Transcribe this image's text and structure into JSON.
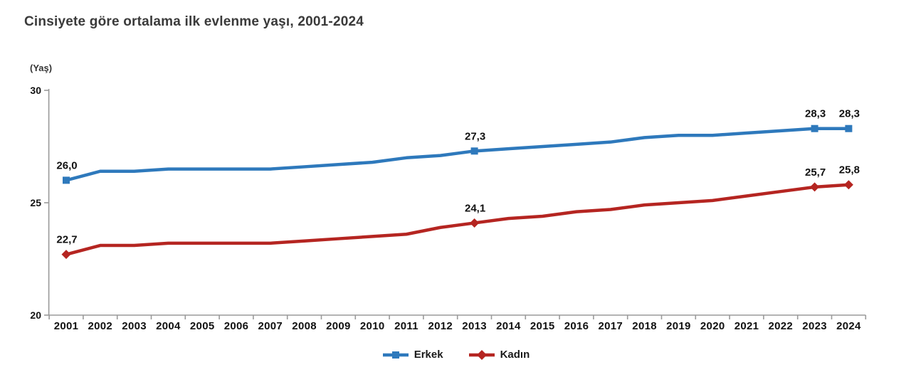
{
  "chart_data": {
    "type": "line",
    "title": "Cinsiyete göre ortalama ilk evlenme yaşı, 2001-2024",
    "unit_label": "(Yaş)",
    "xlabel": "",
    "ylabel": "(Yaş)",
    "x": [
      2001,
      2002,
      2003,
      2004,
      2005,
      2006,
      2007,
      2008,
      2009,
      2010,
      2011,
      2012,
      2013,
      2014,
      2015,
      2016,
      2017,
      2018,
      2019,
      2020,
      2021,
      2022,
      2023,
      2024
    ],
    "ylim": [
      20,
      30
    ],
    "yticks": [
      20,
      25,
      30
    ],
    "grid": false,
    "legend_position": "bottom-center",
    "axis_color": "#9a9a9a",
    "label_color": "#111111",
    "series": [
      {
        "name": "Erkek",
        "color": "#2E79BC",
        "marker": "square",
        "values": [
          26.0,
          26.4,
          26.4,
          26.5,
          26.5,
          26.5,
          26.5,
          26.6,
          26.7,
          26.8,
          27.0,
          27.1,
          27.3,
          27.4,
          27.5,
          27.6,
          27.7,
          27.9,
          28.0,
          28.0,
          28.1,
          28.2,
          28.3,
          28.3
        ],
        "labeled_points": [
          {
            "x": 2001,
            "label": "26,0"
          },
          {
            "x": 2013,
            "label": "27,3"
          },
          {
            "x": 2023,
            "label": "28,3"
          },
          {
            "x": 2024,
            "label": "28,3"
          }
        ]
      },
      {
        "name": "Kadın",
        "color": "#B52521",
        "marker": "diamond",
        "values": [
          22.7,
          23.1,
          23.1,
          23.2,
          23.2,
          23.2,
          23.2,
          23.3,
          23.4,
          23.5,
          23.6,
          23.9,
          24.1,
          24.3,
          24.4,
          24.6,
          24.7,
          24.9,
          25.0,
          25.1,
          25.3,
          25.5,
          25.7,
          25.8
        ],
        "labeled_points": [
          {
            "x": 2001,
            "label": "22,7"
          },
          {
            "x": 2013,
            "label": "24,1"
          },
          {
            "x": 2023,
            "label": "25,7"
          },
          {
            "x": 2024,
            "label": "25,8"
          }
        ]
      }
    ]
  }
}
